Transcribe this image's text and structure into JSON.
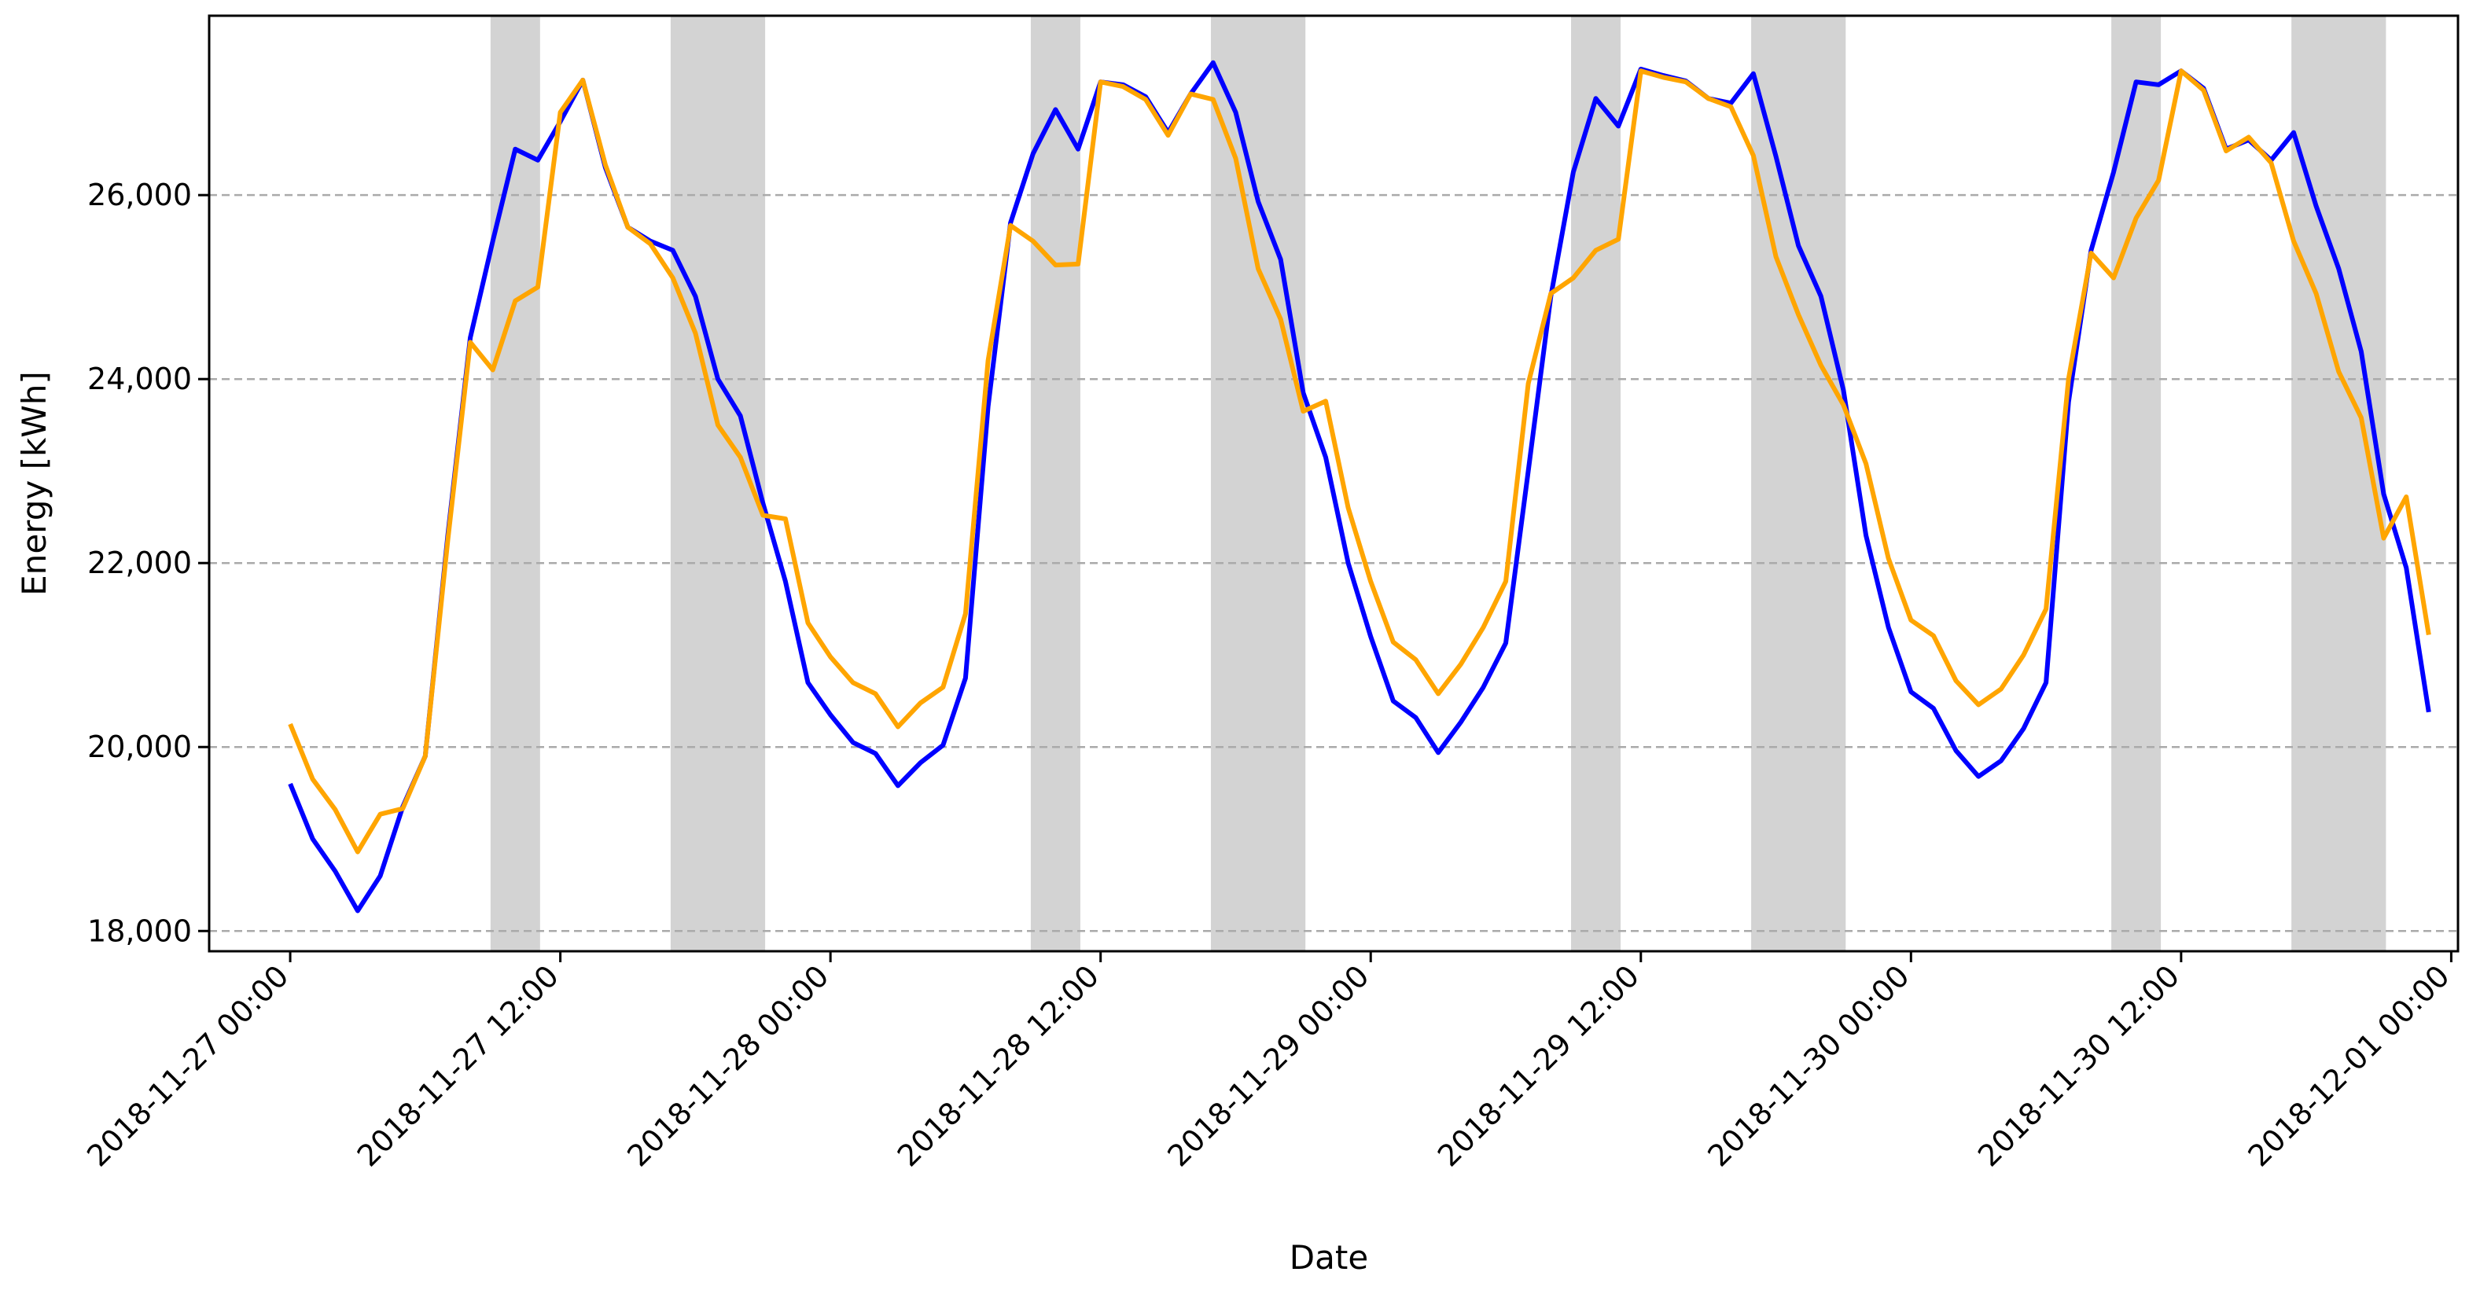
{
  "chart_data": {
    "type": "line",
    "title": "",
    "xlabel": "Date",
    "ylabel": "Energy [kWh]",
    "ylim": [
      17780,
      27950
    ],
    "xlim_hours": [
      -3.6,
      96.3
    ],
    "grid": {
      "y": true,
      "x": false,
      "style": "dashed",
      "color": "#aaaaaa"
    },
    "legend": "none",
    "colors": {
      "series_1": "#0000ff",
      "series_2": "#ffa500",
      "shade": "#d3d3d3"
    },
    "x_ticks": [
      {
        "hour": 0,
        "label": "2018-11-27 00:00"
      },
      {
        "hour": 12,
        "label": "2018-11-27 12:00"
      },
      {
        "hour": 24,
        "label": "2018-11-28 00:00"
      },
      {
        "hour": 36,
        "label": "2018-11-28 12:00"
      },
      {
        "hour": 48,
        "label": "2018-11-29 00:00"
      },
      {
        "hour": 60,
        "label": "2018-11-29 12:00"
      },
      {
        "hour": 72,
        "label": "2018-11-30 00:00"
      },
      {
        "hour": 84,
        "label": "2018-11-30 12:00"
      },
      {
        "hour": 96,
        "label": "2018-12-01 00:00"
      }
    ],
    "y_ticks": [
      {
        "value": 18000,
        "label": "18,000"
      },
      {
        "value": 20000,
        "label": "20,000"
      },
      {
        "value": 22000,
        "label": "22,000"
      },
      {
        "value": 24000,
        "label": "24,000"
      },
      {
        "value": 26000,
        "label": "26,000"
      }
    ],
    "shaded_intervals_hours": [
      [
        8.9,
        11.1
      ],
      [
        16.9,
        21.1
      ],
      [
        32.9,
        35.1
      ],
      [
        40.9,
        45.1
      ],
      [
        56.9,
        59.1
      ],
      [
        64.9,
        69.1
      ],
      [
        80.9,
        83.1
      ],
      [
        88.9,
        93.1
      ]
    ],
    "series": [
      {
        "key": "series_1",
        "values": [
          [
            0,
            19600
          ],
          [
            1,
            19000
          ],
          [
            2,
            18650
          ],
          [
            3,
            18220
          ],
          [
            4,
            18600
          ],
          [
            5,
            19350
          ],
          [
            6,
            19900
          ],
          [
            7,
            22300
          ],
          [
            8,
            24450
          ],
          [
            9,
            25500
          ],
          [
            10,
            26500
          ],
          [
            11,
            26380
          ],
          [
            12,
            26800
          ],
          [
            13,
            27250
          ],
          [
            14,
            26300
          ],
          [
            15,
            25650
          ],
          [
            16,
            25500
          ],
          [
            17,
            25400
          ],
          [
            18,
            24900
          ],
          [
            19,
            24000
          ],
          [
            20,
            23600
          ],
          [
            21,
            22650
          ],
          [
            22,
            21800
          ],
          [
            23,
            20700
          ],
          [
            24,
            20350
          ],
          [
            25,
            20050
          ],
          [
            26,
            19930
          ],
          [
            27,
            19580
          ],
          [
            28,
            19830
          ],
          [
            29,
            20020
          ],
          [
            30,
            20750
          ],
          [
            31,
            23700
          ],
          [
            32,
            25700
          ],
          [
            33,
            26450
          ],
          [
            34,
            26930
          ],
          [
            35,
            26500
          ],
          [
            36,
            27230
          ],
          [
            37,
            27200
          ],
          [
            38,
            27070
          ],
          [
            39,
            26680
          ],
          [
            40,
            27100
          ],
          [
            41,
            27440
          ],
          [
            42,
            26900
          ],
          [
            43,
            25930
          ],
          [
            44,
            25300
          ],
          [
            45,
            23850
          ],
          [
            46,
            23150
          ],
          [
            47,
            22000
          ],
          [
            48,
            21200
          ],
          [
            49,
            20500
          ],
          [
            50,
            20320
          ],
          [
            51,
            19940
          ],
          [
            52,
            20270
          ],
          [
            53,
            20650
          ],
          [
            54,
            21130
          ],
          [
            55,
            23000
          ],
          [
            56,
            24900
          ],
          [
            57,
            26250
          ],
          [
            58,
            27050
          ],
          [
            59,
            26750
          ],
          [
            60,
            27370
          ],
          [
            61,
            27300
          ],
          [
            62,
            27240
          ],
          [
            63,
            27050
          ],
          [
            64,
            27000
          ],
          [
            65,
            27320
          ],
          [
            66,
            26420
          ],
          [
            67,
            25450
          ],
          [
            68,
            24900
          ],
          [
            69,
            23880
          ],
          [
            70,
            22300
          ],
          [
            71,
            21300
          ],
          [
            72,
            20600
          ],
          [
            73,
            20420
          ],
          [
            74,
            19960
          ],
          [
            75,
            19680
          ],
          [
            76,
            19850
          ],
          [
            77,
            20200
          ],
          [
            78,
            20700
          ],
          [
            79,
            23750
          ],
          [
            80,
            25400
          ],
          [
            81,
            26250
          ],
          [
            82,
            27230
          ],
          [
            83,
            27200
          ],
          [
            84,
            27350
          ],
          [
            85,
            27160
          ],
          [
            86,
            26500
          ],
          [
            87,
            26600
          ],
          [
            88,
            26380
          ],
          [
            89,
            26680
          ],
          [
            90,
            25880
          ],
          [
            91,
            25200
          ],
          [
            92,
            24300
          ],
          [
            93,
            22750
          ],
          [
            94,
            21950
          ],
          [
            95,
            20380
          ]
        ]
      },
      {
        "key": "series_2",
        "values": [
          [
            0,
            20250
          ],
          [
            1,
            19650
          ],
          [
            2,
            19320
          ],
          [
            3,
            18860
          ],
          [
            4,
            19270
          ],
          [
            5,
            19330
          ],
          [
            6,
            19900
          ],
          [
            7,
            22250
          ],
          [
            8,
            24400
          ],
          [
            9,
            24100
          ],
          [
            10,
            24850
          ],
          [
            11,
            25000
          ],
          [
            12,
            26900
          ],
          [
            13,
            27250
          ],
          [
            14,
            26330
          ],
          [
            15,
            25650
          ],
          [
            16,
            25470
          ],
          [
            17,
            25100
          ],
          [
            18,
            24500
          ],
          [
            19,
            23500
          ],
          [
            20,
            23150
          ],
          [
            21,
            22520
          ],
          [
            22,
            22480
          ],
          [
            23,
            21350
          ],
          [
            24,
            20980
          ],
          [
            25,
            20700
          ],
          [
            26,
            20580
          ],
          [
            27,
            20220
          ],
          [
            28,
            20480
          ],
          [
            29,
            20650
          ],
          [
            30,
            21450
          ],
          [
            31,
            24200
          ],
          [
            32,
            25670
          ],
          [
            33,
            25500
          ],
          [
            34,
            25240
          ],
          [
            35,
            25250
          ],
          [
            36,
            27230
          ],
          [
            37,
            27180
          ],
          [
            38,
            27040
          ],
          [
            39,
            26650
          ],
          [
            40,
            27100
          ],
          [
            41,
            27040
          ],
          [
            42,
            26400
          ],
          [
            43,
            25200
          ],
          [
            44,
            24650
          ],
          [
            45,
            23650
          ],
          [
            46,
            23760
          ],
          [
            47,
            22600
          ],
          [
            48,
            21800
          ],
          [
            49,
            21140
          ],
          [
            50,
            20950
          ],
          [
            51,
            20580
          ],
          [
            52,
            20900
          ],
          [
            53,
            21300
          ],
          [
            54,
            21800
          ],
          [
            55,
            23950
          ],
          [
            56,
            24930
          ],
          [
            57,
            25100
          ],
          [
            58,
            25400
          ],
          [
            59,
            25520
          ],
          [
            60,
            27350
          ],
          [
            61,
            27280
          ],
          [
            62,
            27230
          ],
          [
            63,
            27050
          ],
          [
            64,
            26960
          ],
          [
            65,
            26430
          ],
          [
            66,
            25330
          ],
          [
            67,
            24700
          ],
          [
            68,
            24150
          ],
          [
            69,
            23720
          ],
          [
            70,
            23080
          ],
          [
            71,
            22050
          ],
          [
            72,
            21380
          ],
          [
            73,
            21210
          ],
          [
            74,
            20720
          ],
          [
            75,
            20460
          ],
          [
            76,
            20630
          ],
          [
            77,
            21000
          ],
          [
            78,
            21500
          ],
          [
            79,
            24000
          ],
          [
            80,
            25370
          ],
          [
            81,
            25100
          ],
          [
            82,
            25750
          ],
          [
            83,
            26160
          ],
          [
            84,
            27350
          ],
          [
            85,
            27140
          ],
          [
            86,
            26480
          ],
          [
            87,
            26630
          ],
          [
            88,
            26350
          ],
          [
            89,
            25500
          ],
          [
            90,
            24930
          ],
          [
            91,
            24080
          ],
          [
            92,
            23580
          ],
          [
            93,
            22270
          ],
          [
            94,
            22720
          ],
          [
            95,
            21220
          ]
        ]
      }
    ]
  }
}
